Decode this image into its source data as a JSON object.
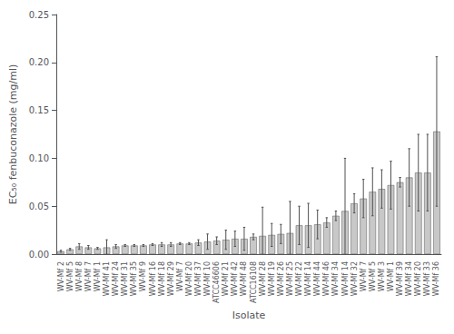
{
  "chart_data": {
    "type": "bar",
    "categories": [
      "WV-Mf 2",
      "WV-Mf 5",
      "WV-Mf 8",
      "WV-Mf 7",
      "WV-Mf 1",
      "WV-Mf 41",
      "WV-Mf 24",
      "WV-Mf 31",
      "WV-Mf 35",
      "WV-Mf 9",
      "WV-Mf 16",
      "WV-Mf 18",
      "WV-Mf 29",
      "WV-Mf 7",
      "WV-Mf 20",
      "WV-Mf 37",
      "WV-Mf 10",
      "ATCC46606",
      "WV-Mf 21",
      "WV-Mf 42",
      "WV-Mf 48",
      "ATCC16108",
      "WV-Mf 28",
      "WV-Mf 19",
      "WV-Mf 26",
      "WV-Mf 25",
      "WV-Mf 22",
      "WV-Mf 14",
      "WV-Mf 44",
      "WV-Mf 46",
      "WV-Mf 34",
      "WV-Mf 14",
      "WV-Mf 32",
      "WV-Mf 7",
      "WV-Mf 5",
      "WV-Mf 3",
      "WV-Mf 1",
      "WV-Mf 39",
      "WV-Mf 34",
      "WV-Mf 20",
      "WV-Mf 33",
      "WV-Mf 36"
    ],
    "values": [
      0.003,
      0.005,
      0.008,
      0.007,
      0.006,
      0.007,
      0.008,
      0.009,
      0.009,
      0.009,
      0.01,
      0.01,
      0.01,
      0.011,
      0.011,
      0.012,
      0.013,
      0.014,
      0.015,
      0.016,
      0.016,
      0.018,
      0.019,
      0.02,
      0.021,
      0.022,
      0.03,
      0.03,
      0.031,
      0.033,
      0.04,
      0.045,
      0.053,
      0.058,
      0.065,
      0.068,
      0.072,
      0.075,
      0.08,
      0.085,
      0.085,
      0.128
    ],
    "errors": [
      0.001,
      0.001,
      0.003,
      0.002,
      0.001,
      0.008,
      0.002,
      0.001,
      0.001,
      0.001,
      0.001,
      0.002,
      0.002,
      0.001,
      0.001,
      0.003,
      0.008,
      0.004,
      0.01,
      0.008,
      0.012,
      0.003,
      0.03,
      0.012,
      0.01,
      0.033,
      0.02,
      0.023,
      0.015,
      0.005,
      0.005,
      0.055,
      0.01,
      0.02,
      0.025,
      0.02,
      0.025,
      0.005,
      0.03,
      0.04,
      0.04,
      0.078
    ],
    "color": "#c8c8c8",
    "xlabel": "Isolate",
    "ylabel": "EC₅₀ fenbuconazole (mg/ml)",
    "ylim": [
      0,
      0.25
    ],
    "yticks": [
      {
        "value": 0,
        "label": "0.00"
      },
      0.05,
      {
        "value": 0.1,
        "label": "0.10"
      },
      0.15,
      {
        "value": 0.2,
        "label": "0.20"
      },
      0.25
    ],
    "grid": false
  }
}
